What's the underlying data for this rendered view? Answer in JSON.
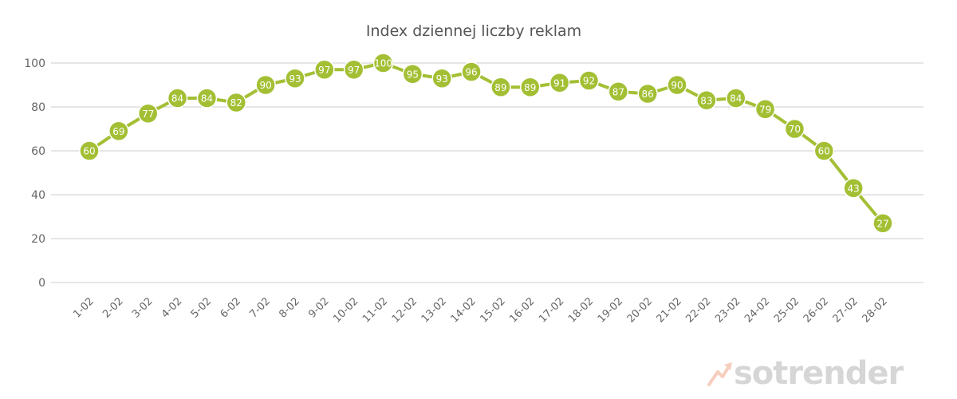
{
  "chart_data": {
    "type": "line",
    "title": "Index dziennej liczby reklam",
    "xlabel": "",
    "ylabel": "",
    "ylim": [
      0,
      100
    ],
    "yticks": [
      0,
      20,
      40,
      60,
      80,
      100
    ],
    "grid": true,
    "legend": "none",
    "categories": [
      "1-02",
      "2-02",
      "3-02",
      "4-02",
      "5-02",
      "6-02",
      "7-02",
      "8-02",
      "9-02",
      "10-02",
      "11-02",
      "12-02",
      "13-02",
      "14-02",
      "15-02",
      "16-02",
      "17-02",
      "18-02",
      "19-02",
      "20-02",
      "21-02",
      "22-02",
      "23-02",
      "24-02",
      "25-02",
      "26-02",
      "27-02",
      "28-02"
    ],
    "series": [
      {
        "values": [
          60,
          69,
          77,
          84,
          84,
          82,
          90,
          93,
          97,
          97,
          100,
          95,
          93,
          96,
          89,
          89,
          91,
          92,
          87,
          86,
          90,
          83,
          84,
          79,
          70,
          60,
          43,
          27
        ],
        "color": "#a3bf34"
      }
    ],
    "data_labels": true
  },
  "watermark": {
    "text": "sotrender",
    "icon": "trend-arrow-icon",
    "icon_color": "#f6cdbd",
    "text_color": "#d6d6d6"
  }
}
